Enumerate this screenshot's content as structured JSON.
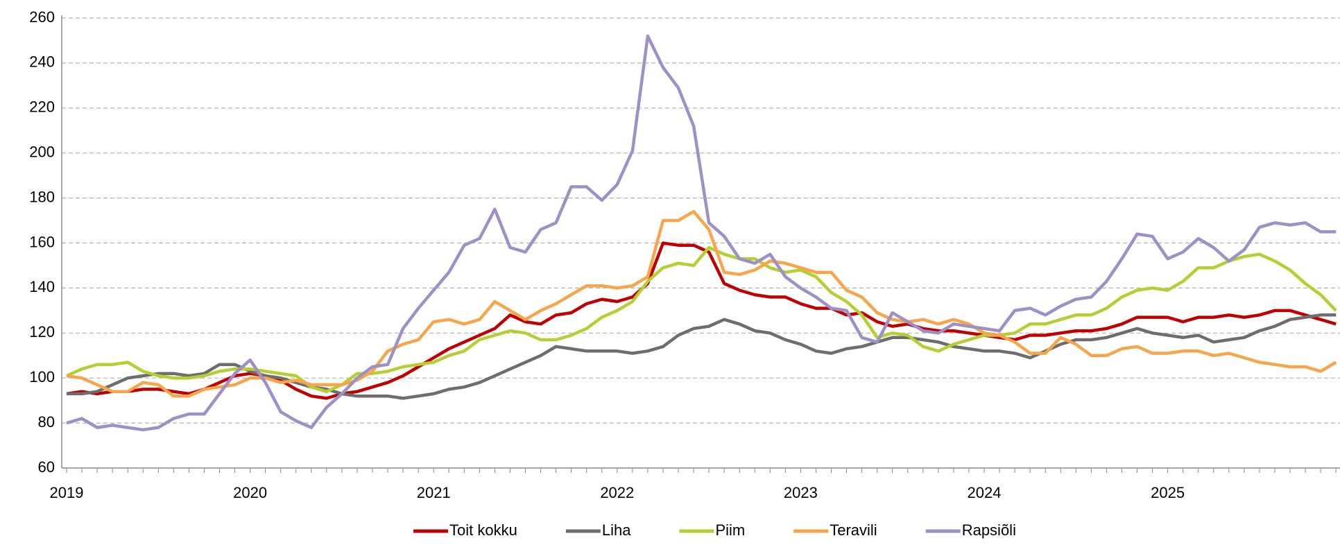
{
  "chart_data": {
    "type": "line",
    "categories": [
      "2019",
      null,
      null,
      null,
      null,
      null,
      null,
      null,
      null,
      null,
      null,
      null,
      "2020",
      null,
      null,
      null,
      null,
      null,
      null,
      null,
      null,
      null,
      null,
      null,
      "2021",
      null,
      null,
      null,
      null,
      null,
      null,
      null,
      null,
      null,
      null,
      null,
      "2022",
      null,
      null,
      null,
      null,
      null,
      null,
      null,
      null,
      null,
      null,
      null,
      "2023",
      null,
      null,
      null,
      null,
      null,
      null,
      null,
      null,
      null,
      null,
      null,
      "2024",
      null,
      null,
      null,
      null,
      null,
      null,
      null,
      null,
      null,
      null,
      null,
      "2025",
      null,
      null,
      null,
      null,
      null,
      null,
      null,
      null,
      null,
      null,
      null
    ],
    "series": [
      {
        "name": "Toit kokku",
        "color": "#c00000",
        "values": [
          93,
          94,
          93,
          94,
          94,
          95,
          95,
          94,
          93,
          95,
          98,
          101,
          102,
          101,
          99,
          95,
          92,
          91,
          93,
          94,
          96,
          98,
          101,
          105,
          109,
          113,
          116,
          119,
          122,
          128,
          125,
          124,
          128,
          129,
          133,
          135,
          134,
          136,
          142,
          160,
          159,
          159,
          156,
          142,
          139,
          137,
          136,
          136,
          133,
          131,
          131,
          128,
          129,
          125,
          123,
          124,
          122,
          121,
          121,
          120,
          119,
          118,
          117,
          119,
          119,
          120,
          121,
          121,
          122,
          124,
          127,
          127,
          127,
          125,
          127,
          127,
          128,
          127,
          128,
          130,
          130,
          128,
          126,
          124
        ]
      },
      {
        "name": "Liha",
        "color": "#6d6d6d",
        "values": [
          93,
          93,
          94,
          97,
          100,
          101,
          102,
          102,
          101,
          102,
          106,
          106,
          103,
          101,
          100,
          98,
          96,
          95,
          93,
          92,
          92,
          92,
          91,
          92,
          93,
          95,
          96,
          98,
          101,
          104,
          107,
          110,
          114,
          113,
          112,
          112,
          112,
          111,
          112,
          114,
          119,
          122,
          123,
          126,
          124,
          121,
          120,
          117,
          115,
          112,
          111,
          113,
          114,
          116,
          118,
          118,
          117,
          116,
          114,
          113,
          112,
          112,
          111,
          109,
          112,
          115,
          117,
          117,
          118,
          120,
          122,
          120,
          119,
          118,
          119,
          116,
          117,
          118,
          121,
          123,
          126,
          127,
          128,
          128
        ]
      },
      {
        "name": "Piim",
        "color": "#b5cf32",
        "values": [
          101,
          104,
          106,
          106,
          107,
          103,
          101,
          100,
          100,
          101,
          103,
          104,
          104,
          103,
          102,
          101,
          96,
          94,
          97,
          102,
          102,
          103,
          105,
          106,
          107,
          110,
          112,
          117,
          119,
          121,
          120,
          117,
          117,
          119,
          122,
          127,
          130,
          134,
          143,
          149,
          151,
          150,
          158,
          155,
          153,
          153,
          149,
          147,
          148,
          145,
          138,
          134,
          128,
          118,
          120,
          119,
          114,
          112,
          115,
          117,
          119,
          119,
          120,
          124,
          124,
          126,
          128,
          128,
          131,
          136,
          139,
          140,
          139,
          143,
          149,
          149,
          152,
          154,
          155,
          152,
          148,
          142,
          137,
          130
        ]
      },
      {
        "name": "Teravili",
        "color": "#f7a54a",
        "values": [
          101,
          100,
          97,
          94,
          94,
          98,
          97,
          92,
          92,
          95,
          96,
          97,
          100,
          100,
          98,
          99,
          97,
          97,
          97,
          99,
          103,
          112,
          115,
          117,
          125,
          126,
          124,
          126,
          134,
          130,
          126,
          130,
          133,
          137,
          141,
          141,
          140,
          141,
          145,
          170,
          170,
          174,
          166,
          147,
          146,
          148,
          152,
          151,
          149,
          147,
          147,
          139,
          136,
          129,
          126,
          125,
          126,
          124,
          126,
          124,
          120,
          119,
          116,
          111,
          111,
          118,
          115,
          110,
          110,
          113,
          114,
          111,
          111,
          112,
          112,
          110,
          111,
          109,
          107,
          106,
          105,
          105,
          103,
          107
        ]
      },
      {
        "name": "Rapsiõli",
        "color": "#9e8fc6",
        "values": [
          80,
          82,
          78,
          79,
          78,
          77,
          78,
          82,
          84,
          84,
          93,
          102,
          108,
          98,
          85,
          81,
          78,
          87,
          93,
          100,
          105,
          106,
          122,
          131,
          139,
          147,
          159,
          162,
          175,
          158,
          156,
          166,
          169,
          185,
          185,
          179,
          186,
          201,
          252,
          238,
          229,
          212,
          169,
          163,
          153,
          151,
          155,
          145,
          140,
          136,
          131,
          130,
          118,
          116,
          129,
          125,
          121,
          120,
          124,
          123,
          122,
          121,
          130,
          131,
          128,
          132,
          135,
          136,
          143,
          153,
          164,
          163,
          153,
          156,
          162,
          158,
          152,
          157,
          167,
          169,
          168,
          169,
          165,
          165
        ]
      }
    ],
    "ylim": [
      60,
      260
    ],
    "yticks": [
      60,
      80,
      100,
      120,
      140,
      160,
      180,
      200,
      220,
      240,
      260
    ],
    "grid": true,
    "legend": "bottom"
  }
}
